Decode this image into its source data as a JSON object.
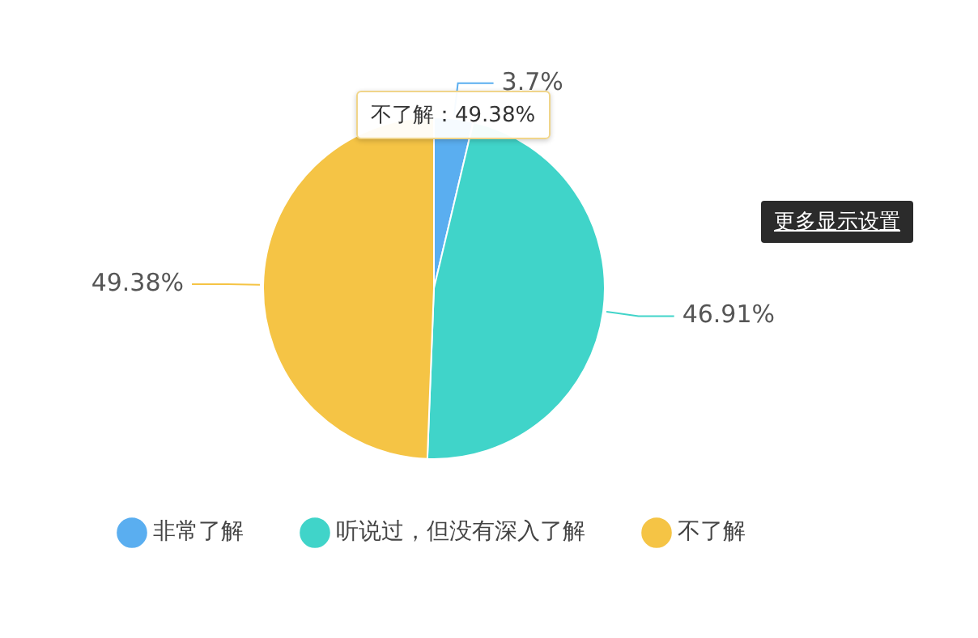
{
  "chart_data": {
    "type": "pie",
    "categories": [
      "非常了解",
      "听说过，但没有深入了解",
      "不了解"
    ],
    "values": [
      3.7,
      46.91,
      49.38
    ],
    "colors": [
      "#5aaef0",
      "#40d4c9",
      "#f5c445"
    ],
    "value_labels": [
      "3.7%",
      "46.91%",
      "49.38%"
    ],
    "legend": "bottom",
    "annotations": [
      "不了解：49.38%",
      "更多显示设置"
    ]
  }
}
